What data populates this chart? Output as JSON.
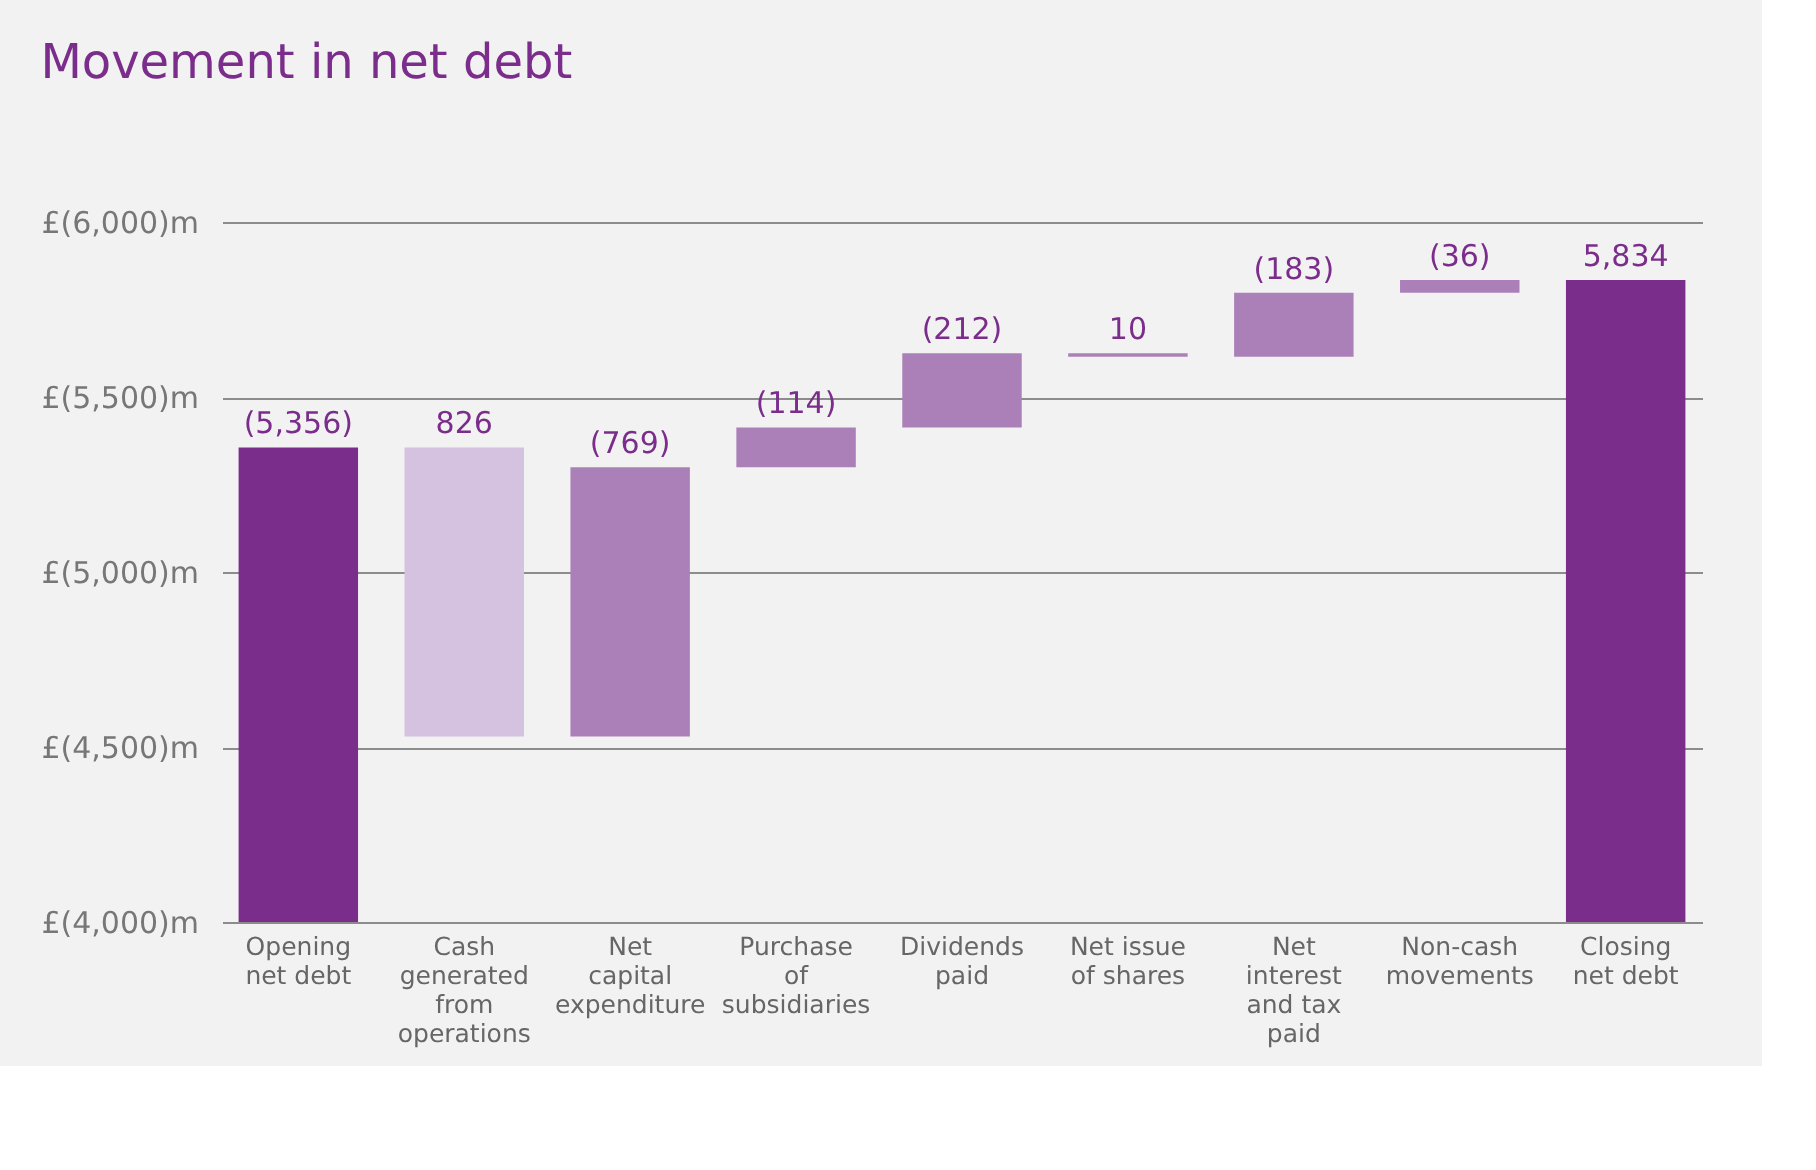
{
  "chart_data": {
    "type": "bar",
    "title": "Movement in net debt",
    "categories": [
      "Opening net debt",
      "Cash generated from operations",
      "Net capital expenditure",
      "Purchase of subsidiaries",
      "Dividends paid",
      "Net issue of shares",
      "Net interest and tax paid",
      "Non-cash movements",
      "Closing net debt"
    ],
    "values": [
      5356,
      -826,
      769,
      114,
      212,
      -10,
      183,
      36,
      5834
    ],
    "base": [
      null,
      5356,
      4530,
      5299,
      5413,
      5625,
      5615,
      5798,
      null
    ],
    "value_labels": [
      "(5,356)",
      "826",
      "(769)",
      "(114)",
      "(212)",
      "10",
      "(183)",
      "(36)",
      "5,834"
    ],
    "colors": [
      "#7b2d8b",
      "#d4c2e0",
      "#ab80b9",
      "#ab80b9",
      "#ab80b9",
      "#ab80b9",
      "#ab80b9",
      "#ab80b9",
      "#7b2d8b"
    ],
    "ylim": [
      4000,
      6000
    ],
    "yticks": [
      {
        "value": 4000,
        "label": "£(4,000)m"
      },
      {
        "value": 4500,
        "label": "£(4,500)m"
      },
      {
        "value": 5000,
        "label": "£(5,000)m"
      },
      {
        "value": 5500,
        "label": "£(5,500)m"
      },
      {
        "value": 6000,
        "label": "£(6,000)m"
      }
    ],
    "grid": "y"
  }
}
